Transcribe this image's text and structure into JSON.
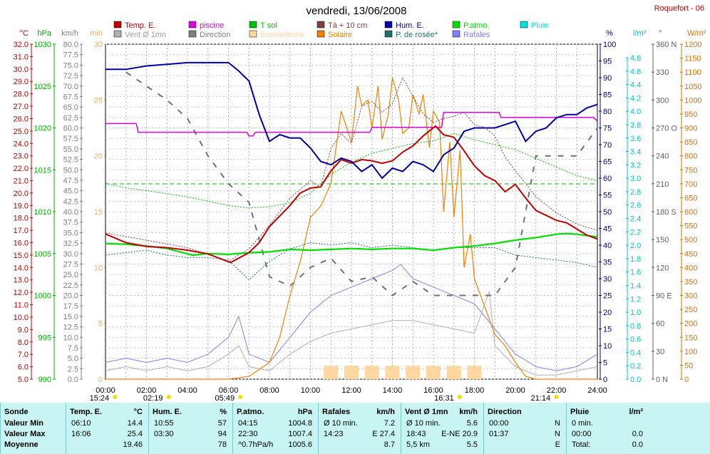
{
  "title": "vendredi, 13/06/2008",
  "station": "Roquefort - 06",
  "legend": [
    {
      "label": "Temp. E.",
      "color": "#c00000"
    },
    {
      "label": "piscine",
      "color": "#e000e0"
    },
    {
      "label": "T sol",
      "color": "#00c000"
    },
    {
      "label": "Tà + 10 cm",
      "color": "#804040"
    },
    {
      "label": "Hum. E.",
      "color": "#0000a0"
    },
    {
      "label": "P.atmo.",
      "color": "#00e000"
    },
    {
      "label": "Pluie",
      "color": "#00e0e0"
    },
    {
      "label": "Vent Ø 1mn",
      "color": "#b0b0b0"
    },
    {
      "label": "Direction",
      "color": "#808080"
    },
    {
      "label": "Ensoleilleme",
      "color": "#ffd7a0"
    },
    {
      "label": "Solaire",
      "color": "#f08000"
    },
    {
      "label": "P. de rosée*",
      "color": "#207070"
    },
    {
      "label": "Rafales",
      "color": "#8080ff"
    }
  ],
  "axes": {
    "temp": {
      "unit": "°C",
      "color": "#c00000",
      "ticks": [
        "32.0",
        "31.0",
        "30.0",
        "29.0",
        "28.0",
        "27.0",
        "26.0",
        "25.0",
        "24.0",
        "23.0",
        "22.0",
        "21.0",
        "20.0",
        "19.0",
        "18.0",
        "17.0",
        "16.0",
        "15.0",
        "14.0",
        "13.0",
        "12.0",
        "11.0",
        "10.0",
        "9.0",
        "8.0",
        "7.0",
        "6.0",
        "5.0"
      ]
    },
    "press": {
      "unit": "hPa",
      "color": "#00b000",
      "ticks": [
        "1030",
        "1025",
        "1020",
        "1015",
        "1010",
        "1005",
        "1000",
        "995",
        "990"
      ]
    },
    "wind": {
      "unit": "km/h",
      "color": "#808080",
      "ticks": [
        "80.0",
        "77.5",
        "75.0",
        "72.5",
        "70.0",
        "67.5",
        "65.0",
        "62.5",
        "60.0",
        "57.5",
        "55.0",
        "52.5",
        "50.0",
        "47.5",
        "45.0",
        "42.5",
        "40.0",
        "37.5",
        "35.0",
        "32.5",
        "30.0",
        "27.5",
        "25.0",
        "22.5",
        "20.0",
        "17.5",
        "15.0",
        "12.5",
        "10.0",
        "7.5",
        "5.0",
        "2.5",
        "0.0"
      ]
    },
    "sun": {
      "unit": "min",
      "color": "#e8b070",
      "ticks": [
        "30",
        "25",
        "20",
        "15",
        "10",
        "5",
        "0"
      ]
    },
    "hum": {
      "unit": "%",
      "color": "#000080",
      "ticks": [
        "100",
        "95",
        "90",
        "85",
        "80",
        "75",
        "70",
        "65",
        "60",
        "55",
        "50",
        "45",
        "40",
        "35",
        "30",
        "25",
        "20",
        "15",
        "10",
        "5",
        "0"
      ]
    },
    "rain": {
      "unit": "l/m²",
      "color": "#00c8c8",
      "ticks": [
        "4.8",
        "4.6",
        "4.4",
        "4.2",
        "4.0",
        "3.8",
        "3.6",
        "3.4",
        "3.2",
        "3.0",
        "2.8",
        "2.6",
        "2.4",
        "2.2",
        "2.0",
        "1.8",
        "1.6",
        "1.4",
        "1.2",
        "1.0",
        "0.8",
        "0.6",
        "0.4",
        "0.2",
        "0.0"
      ]
    },
    "dir": {
      "unit": "°",
      "color": "#606060",
      "ticks": [
        "360 N",
        "330",
        "300",
        "270 O",
        "240",
        "210",
        "180 S",
        "150",
        "120",
        "90 E",
        "60",
        "30",
        "0 N"
      ]
    },
    "solar": {
      "unit": "W/m²",
      "color": "#e07000",
      "ticks": [
        "1200",
        "1150",
        "1100",
        "1050",
        "1000",
        "950",
        "900",
        "850",
        "800",
        "750",
        "700",
        "650",
        "600",
        "550",
        "500",
        "450",
        "400",
        "350",
        "300",
        "250",
        "200",
        "150",
        "100",
        "50",
        "0"
      ]
    }
  },
  "time_labels": [
    "00:00",
    "02:00",
    "04:00",
    "06:00",
    "08:00",
    "10:00",
    "12:00",
    "14:00",
    "16:00",
    "18:00",
    "20:00",
    "22:00",
    "24:00"
  ],
  "events": [
    {
      "label": "15:24",
      "hour": -0.3
    },
    {
      "label": "02:19",
      "hour": 2.32
    },
    {
      "label": "05:49",
      "hour": 5.82
    },
    {
      "label": "16:31",
      "hour": 16.52
    },
    {
      "label": "21:14",
      "hour": 21.23
    }
  ],
  "chart_data": {
    "type": "line",
    "x_unit": "hour",
    "xlim": [
      0,
      24
    ],
    "series": [
      {
        "name": "Temp. E.",
        "axis": "°C",
        "x": [
          0,
          1,
          2,
          3,
          4,
          5,
          6.1,
          7,
          7.5,
          8,
          9,
          9.5,
          10,
          10.5,
          11,
          11.5,
          12,
          12.5,
          13,
          13.5,
          14,
          14.5,
          15,
          15.5,
          16.1,
          16.5,
          17,
          17.5,
          18,
          18.5,
          19,
          19.5,
          20,
          20.5,
          21,
          21.5,
          22,
          22.5,
          23,
          23.5,
          24
        ],
        "y": [
          16.7,
          16.0,
          15.7,
          15.6,
          15.4,
          15.1,
          14.4,
          15.2,
          16.0,
          17.3,
          19.0,
          20.0,
          20.4,
          20.5,
          21.8,
          22.7,
          22.4,
          22.7,
          22.6,
          22.4,
          22.6,
          23.3,
          23.8,
          24.6,
          25.4,
          24.7,
          24.5,
          23.4,
          22.2,
          21.4,
          21.0,
          20.1,
          20.7,
          19.6,
          18.6,
          18.2,
          17.8,
          17.6,
          17.1,
          16.6,
          16.3
        ]
      },
      {
        "name": "piscine",
        "axis": "°C",
        "x": [
          0,
          1.5,
          1.6,
          6.9,
          7.0,
          7.2,
          7.3,
          12.9,
          13.0,
          16.4,
          16.5,
          19.2,
          19.3,
          23.8,
          24
        ],
        "y": [
          25.6,
          25.6,
          24.9,
          24.9,
          24.6,
          24.6,
          24.9,
          24.9,
          25.3,
          25.3,
          26.5,
          26.5,
          26.1,
          26.1,
          25.8
        ]
      },
      {
        "name": "Hum. E.",
        "axis": "%",
        "x": [
          0,
          1,
          2,
          3,
          4,
          5,
          6,
          6.5,
          7,
          7.5,
          8,
          8.5,
          9,
          9.5,
          10,
          10.5,
          11,
          11.5,
          12,
          12.5,
          13,
          13.5,
          14,
          14.5,
          15,
          15.5,
          16,
          16.5,
          17,
          17.5,
          18,
          18.5,
          19,
          19.5,
          20,
          20.5,
          21,
          21.5,
          22,
          22.5,
          23,
          23.5,
          24
        ],
        "y": [
          92.5,
          92.5,
          93.5,
          94,
          94.5,
          94.5,
          94.5,
          92,
          89,
          79,
          71,
          73,
          72,
          72,
          69,
          65,
          64,
          66,
          65,
          62,
          64,
          60,
          63,
          62,
          65,
          64,
          62,
          67,
          69,
          74,
          75,
          75,
          75,
          76,
          77,
          71,
          74,
          75,
          78,
          79,
          79,
          81,
          82
        ]
      },
      {
        "name": "P.atmo.",
        "axis": "hPa",
        "x": [
          0,
          1,
          2,
          3,
          4.25,
          5,
          6,
          7,
          8,
          9,
          10,
          11,
          12,
          13,
          14,
          15,
          16,
          17,
          18,
          19,
          20,
          21,
          22,
          22.5,
          23,
          24
        ],
        "y": [
          1006.2,
          1006.1,
          1005.9,
          1005.6,
          1004.8,
          1005.0,
          1004.9,
          1005.1,
          1005.2,
          1005.5,
          1005.4,
          1005.5,
          1005.6,
          1005.5,
          1005.6,
          1005.6,
          1005.4,
          1005.7,
          1005.9,
          1006.2,
          1006.6,
          1006.9,
          1007.3,
          1007.4,
          1007.3,
          1007.0
        ]
      },
      {
        "name": "T sol",
        "axis": "°C",
        "x": [
          0,
          1,
          2,
          4,
          6,
          7,
          8,
          9,
          10,
          11,
          12,
          13,
          14,
          15,
          16,
          17,
          18,
          19,
          20,
          21,
          22,
          23,
          24
        ],
        "y": [
          20.8,
          20.4,
          20.2,
          19.7,
          19.0,
          18.8,
          18.9,
          19.2,
          20.0,
          21.5,
          22.5,
          23.2,
          23.6,
          24.0,
          24.2,
          24.8,
          24.3,
          23.9,
          23.5,
          22.8,
          22.1,
          21.4,
          21.0
        ]
      },
      {
        "name": "Tà + 10 cm",
        "axis": "°C",
        "x": [
          0,
          2,
          4,
          6,
          7,
          8,
          9,
          10,
          10.5,
          11,
          11.5,
          12,
          12.5,
          13,
          13.5,
          14,
          14.5,
          15,
          15.5,
          16,
          16.5,
          17,
          17.5,
          18,
          18.5,
          19,
          19.5,
          20,
          21,
          22,
          23,
          24
        ],
        "y": [
          16.8,
          16.2,
          15.6,
          14.5,
          15.5,
          17.4,
          19.6,
          21.0,
          20.5,
          23.6,
          24.8,
          24.0,
          27.0,
          27.4,
          26.5,
          27.2,
          29.3,
          27.8,
          26.4,
          25.7,
          26.0,
          26.2,
          26.5,
          25.5,
          25.3,
          24.6,
          22.9,
          21.8,
          19.7,
          18.4,
          17.5,
          17.0
        ]
      },
      {
        "name": "P. de rosée*",
        "axis": "°C",
        "x": [
          0,
          1,
          2,
          3,
          4,
          5,
          6,
          7,
          8,
          9,
          10,
          11,
          12,
          13,
          14,
          15,
          16,
          17,
          18,
          19,
          20,
          21,
          22,
          23,
          24
        ],
        "y": [
          15.0,
          15.2,
          15.4,
          15.0,
          14.8,
          14.8,
          14.6,
          13.0,
          14.5,
          15.5,
          16.0,
          15.8,
          16.0,
          15.6,
          15.8,
          15.6,
          15.4,
          15.6,
          15.6,
          15.6,
          15.0,
          14.8,
          14.6,
          14.4,
          14.0
        ]
      },
      {
        "name": "Solaire",
        "axis": "W/m²",
        "x": [
          0,
          6,
          7,
          8,
          8.5,
          9,
          9.5,
          10,
          10.5,
          11,
          11.5,
          12,
          12.3,
          12.5,
          12.8,
          13,
          13.3,
          13.5,
          13.8,
          14,
          14.3,
          14.5,
          14.8,
          15,
          15.3,
          15.5,
          15.8,
          16,
          16.3,
          16.5,
          16.8,
          17,
          17.3,
          17.5,
          17.8,
          18,
          18.5,
          19,
          19.5,
          20,
          20.5,
          21,
          24
        ],
        "y": [
          0,
          0,
          10,
          60,
          150,
          300,
          420,
          580,
          620,
          700,
          960,
          850,
          1050,
          980,
          1000,
          900,
          1050,
          860,
          950,
          1080,
          1000,
          880,
          900,
          1020,
          950,
          1020,
          830,
          960,
          920,
          600,
          850,
          580,
          820,
          400,
          520,
          360,
          260,
          160,
          120,
          60,
          10,
          0,
          0
        ]
      },
      {
        "name": "Rafales",
        "axis": "km/h",
        "x": [
          0,
          1,
          2,
          3,
          4,
          5,
          6,
          6.5,
          7,
          8,
          9,
          10,
          11,
          12,
          13,
          14,
          14.4,
          15,
          16,
          17,
          18,
          19,
          20,
          21,
          22,
          23,
          24
        ],
        "y": [
          4,
          5,
          4,
          5,
          4,
          6,
          10,
          15,
          6,
          4,
          10,
          16,
          20,
          22,
          24,
          26,
          27.4,
          24,
          22,
          20,
          18,
          12,
          6,
          3,
          2,
          3,
          6
        ]
      },
      {
        "name": "Vent Ø 1mn",
        "axis": "km/h",
        "x": [
          0,
          1,
          2,
          3,
          4,
          5,
          6,
          6.5,
          7,
          8,
          9,
          10,
          11,
          12,
          13,
          14,
          15,
          16,
          17,
          18,
          18.72,
          19,
          20,
          21,
          22,
          23,
          24
        ],
        "y": [
          2,
          3,
          2,
          3,
          2,
          3,
          6,
          8,
          3,
          2,
          6,
          9,
          11,
          12,
          13,
          14,
          14,
          13,
          12,
          11,
          20.9,
          8,
          3,
          1,
          1,
          2,
          3
        ]
      },
      {
        "name": "Direction",
        "axis": "°",
        "x": [
          1,
          2,
          3,
          4,
          5,
          6,
          7,
          8,
          9,
          10,
          11,
          12,
          13,
          14,
          15,
          16,
          17,
          18,
          19,
          20,
          21,
          22,
          23,
          24
        ],
        "y": [
          330,
          315,
          300,
          280,
          240,
          210,
          190,
          110,
          100,
          120,
          130,
          105,
          110,
          90,
          105,
          90,
          90,
          90,
          90,
          120,
          240,
          240,
          240,
          270
        ]
      },
      {
        "name": "Ensoleilleme",
        "axis": "min",
        "x": [
          11,
          12,
          13,
          14,
          15,
          16,
          17,
          18
        ],
        "y": [
          1,
          1,
          1,
          1,
          1,
          1,
          1,
          1
        ]
      }
    ]
  },
  "summary": {
    "headers": [
      {
        "name": "Sonde",
        "unit": ""
      },
      {
        "name": "Temp. E.",
        "unit": "°C"
      },
      {
        "name": "Hum. E.",
        "unit": "%"
      },
      {
        "name": "P.atmo.",
        "unit": "hPa"
      },
      {
        "name": "Rafales",
        "unit": "km/h"
      },
      {
        "name": "Vent Ø 1mn",
        "unit": "km/h"
      },
      {
        "name": "Direction",
        "unit": ""
      },
      {
        "name": "Pluie",
        "unit": "l/m²"
      }
    ],
    "rows": [
      {
        "label": "Valeur Min",
        "temp": [
          "06:10",
          "14.4"
        ],
        "hum": [
          "10:55",
          "57"
        ],
        "press": [
          "04:15",
          "1004.8"
        ],
        "gust": [
          "Ø 10 min.",
          "7.2"
        ],
        "wind": [
          "Ø 10 min.",
          "5.6"
        ],
        "dir": [
          "00:00",
          "N"
        ],
        "rain": [
          "0 min.",
          ""
        ]
      },
      {
        "label": "Valeur Max",
        "temp": [
          "16:06",
          "25.4"
        ],
        "hum": [
          "03:30",
          "94"
        ],
        "press": [
          "22:30",
          "1007.4"
        ],
        "gust": [
          "14:23",
          "E 27.4"
        ],
        "wind": [
          "18:43",
          "E-NE 20.9"
        ],
        "dir": [
          "01:37",
          "N"
        ],
        "rain": [
          "00:00",
          "0.0"
        ]
      },
      {
        "label": "Moyenne",
        "temp": [
          "",
          "19.46"
        ],
        "hum": [
          "",
          "78"
        ],
        "press": [
          "^0.7hPa/h",
          "1005.6"
        ],
        "gust": [
          "",
          "8.7"
        ],
        "wind": [
          "5,5 km",
          "5.5"
        ],
        "dir": [
          "",
          "E"
        ],
        "rain": [
          "Total:",
          "0.0"
        ]
      }
    ]
  }
}
